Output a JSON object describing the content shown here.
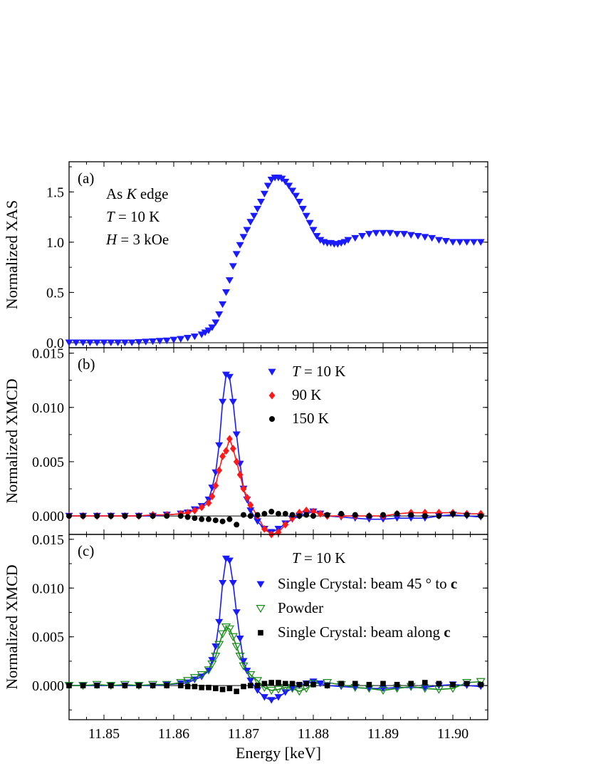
{
  "chart_data": [
    {
      "panel": "(a)",
      "type": "scatter",
      "xlabel": "",
      "ylabel": "Normalized XAS",
      "xlim": [
        11.845,
        11.905
      ],
      "ylim": [
        -0.05,
        1.8
      ],
      "yticks": [
        "0.0",
        "0.5",
        "1.0",
        "1.5"
      ],
      "annotations": {
        "line1_pre": "As ",
        "line1_italic": "K",
        "line1_post": " edge",
        "line2_italic": "T",
        "line2_post": " = 10 K",
        "line3_italic": "H",
        "line3_post": " = 3 kOe"
      },
      "series": [
        {
          "marker": "triangle-down",
          "color": "#1a1aff",
          "x": [
            11.845,
            11.846,
            11.847,
            11.848,
            11.849,
            11.85,
            11.851,
            11.852,
            11.853,
            11.854,
            11.855,
            11.856,
            11.857,
            11.858,
            11.859,
            11.86,
            11.861,
            11.862,
            11.863,
            11.864,
            11.8645,
            11.865,
            11.8655,
            11.866,
            11.8665,
            11.867,
            11.8675,
            11.868,
            11.8685,
            11.869,
            11.8695,
            11.87,
            11.8705,
            11.871,
            11.8715,
            11.872,
            11.8725,
            11.873,
            11.8735,
            11.874,
            11.8745,
            11.875,
            11.8755,
            11.876,
            11.8765,
            11.877,
            11.8775,
            11.878,
            11.8785,
            11.879,
            11.8795,
            11.88,
            11.8805,
            11.881,
            11.8815,
            11.882,
            11.8825,
            11.883,
            11.8835,
            11.884,
            11.8845,
            11.885,
            11.886,
            11.887,
            11.888,
            11.889,
            11.89,
            11.891,
            11.892,
            11.893,
            11.894,
            11.895,
            11.896,
            11.897,
            11.898,
            11.899,
            11.9,
            11.901,
            11.902,
            11.903,
            11.904
          ],
          "y": [
            0.0,
            0.0,
            0.0,
            0.0,
            0.0,
            0.0,
            0.0,
            0.0,
            0.0,
            0.0,
            0.005,
            0.008,
            0.012,
            0.016,
            0.02,
            0.028,
            0.036,
            0.046,
            0.06,
            0.08,
            0.1,
            0.12,
            0.15,
            0.2,
            0.28,
            0.38,
            0.5,
            0.62,
            0.76,
            0.88,
            0.97,
            1.05,
            1.12,
            1.2,
            1.26,
            1.33,
            1.4,
            1.48,
            1.56,
            1.62,
            1.64,
            1.64,
            1.63,
            1.6,
            1.56,
            1.51,
            1.46,
            1.4,
            1.33,
            1.26,
            1.19,
            1.12,
            1.06,
            1.02,
            1.0,
            0.99,
            0.99,
            0.98,
            0.98,
            0.99,
            1.0,
            1.02,
            1.04,
            1.06,
            1.08,
            1.09,
            1.09,
            1.09,
            1.08,
            1.08,
            1.07,
            1.06,
            1.05,
            1.04,
            1.02,
            1.01,
            1.0,
            1.0,
            1.0,
            1.0,
            1.0
          ]
        }
      ]
    },
    {
      "panel": "(b)",
      "type": "scatter",
      "xlabel": "",
      "ylabel": "Normalized XMCD",
      "xlim": [
        11.845,
        11.905
      ],
      "ylim": [
        -0.0017,
        0.0155
      ],
      "yticks": [
        "0.000",
        "0.005",
        "0.010",
        "0.015"
      ],
      "legend_location": "upper-center",
      "series": [
        {
          "name_italic": "T",
          "name_post": " = 10 K",
          "marker": "triangle-down",
          "color": "#1a1aff",
          "fit_line": true,
          "x": [
            11.845,
            11.847,
            11.849,
            11.851,
            11.853,
            11.855,
            11.857,
            11.859,
            11.861,
            11.862,
            11.863,
            11.864,
            11.865,
            11.8655,
            11.866,
            11.8665,
            11.867,
            11.8675,
            11.868,
            11.8685,
            11.869,
            11.8695,
            11.87,
            11.8705,
            11.871,
            11.872,
            11.873,
            11.874,
            11.875,
            11.876,
            11.877,
            11.878,
            11.879,
            11.88,
            11.881,
            11.882,
            11.884,
            11.886,
            11.888,
            11.89,
            11.892,
            11.894,
            11.896,
            11.898,
            11.9,
            11.902,
            11.904
          ],
          "y": [
            0.0,
            0.0,
            0.0,
            0.0,
            0.0,
            0.0,
            0.0,
            0.0001,
            0.0002,
            0.0003,
            0.0006,
            0.0009,
            0.0015,
            0.0026,
            0.004,
            0.0065,
            0.0105,
            0.013,
            0.0128,
            0.0105,
            0.0075,
            0.0048,
            0.0025,
            0.0015,
            0.0005,
            -0.0005,
            -0.0012,
            -0.0015,
            -0.0012,
            -0.0007,
            -0.0003,
            0.0,
            0.0002,
            0.0004,
            0.0002,
            0.0,
            -0.0001,
            -0.0002,
            -0.0003,
            -0.0003,
            -0.0002,
            -0.0002,
            -0.0002,
            0.0,
            0.0001,
            0.0,
            -0.0001
          ]
        },
        {
          "name_pre": "  ",
          "name_post": "90 K",
          "marker": "diamond",
          "color": "#ff1a1a",
          "fit_line": true,
          "x": [
            11.845,
            11.847,
            11.849,
            11.851,
            11.853,
            11.855,
            11.857,
            11.859,
            11.861,
            11.862,
            11.863,
            11.864,
            11.865,
            11.8655,
            11.866,
            11.8665,
            11.867,
            11.8675,
            11.868,
            11.8685,
            11.869,
            11.8695,
            11.87,
            11.8705,
            11.871,
            11.872,
            11.873,
            11.874,
            11.875,
            11.876,
            11.877,
            11.878,
            11.879,
            11.88,
            11.881,
            11.882,
            11.884,
            11.886,
            11.888,
            11.89,
            11.892,
            11.894,
            11.896,
            11.898,
            11.9,
            11.902,
            11.904
          ],
          "y": [
            0.0,
            0.0,
            0.0,
            0.0,
            0.0,
            0.0,
            0.0001,
            0.0001,
            0.0002,
            0.0003,
            0.0005,
            0.0008,
            0.0012,
            0.0018,
            0.0028,
            0.0042,
            0.0055,
            0.006,
            0.0071,
            0.0062,
            0.005,
            0.0038,
            0.0025,
            0.0017,
            0.001,
            0.0,
            -0.0012,
            -0.0017,
            -0.0015,
            -0.0008,
            -0.0002,
            0.0003,
            0.0005,
            0.0004,
            0.0002,
            0.0,
            0.0,
            0.0,
            0.0,
            0.0,
            0.0002,
            0.0003,
            0.0003,
            0.0003,
            0.0003,
            0.0002,
            0.0002
          ]
        },
        {
          "name_post": "150 K",
          "marker": "circle",
          "color": "#000000",
          "fit_line": false,
          "x": [
            11.845,
            11.847,
            11.849,
            11.851,
            11.853,
            11.855,
            11.857,
            11.859,
            11.861,
            11.862,
            11.863,
            11.864,
            11.865,
            11.866,
            11.867,
            11.868,
            11.869,
            11.87,
            11.871,
            11.872,
            11.873,
            11.874,
            11.875,
            11.876,
            11.877,
            11.878,
            11.879,
            11.88,
            11.882,
            11.884,
            11.886,
            11.888,
            11.89,
            11.892,
            11.894,
            11.896,
            11.898,
            11.9,
            11.902,
            11.904
          ],
          "y": [
            0.0,
            0.0,
            0.0,
            0.0,
            0.0,
            0.0,
            0.0,
            0.0,
            0.0,
            -0.0001,
            -0.0002,
            -0.0003,
            -0.0003,
            -0.0004,
            -0.0005,
            -0.0003,
            -0.0008,
            0.0001,
            0.0,
            0.0001,
            0.0002,
            0.0004,
            0.0002,
            0.0002,
            0.0001,
            0.0,
            0.0001,
            0.0,
            0.0001,
            0.0002,
            0.0001,
            0.0,
            0.0001,
            0.0002,
            0.0001,
            0.0,
            0.0,
            0.0002,
            0.0001,
            0.0
          ]
        }
      ]
    },
    {
      "panel": "(c)",
      "type": "scatter",
      "xlabel": "Energy [keV]",
      "ylabel": "Normalized XMCD",
      "xlim": [
        11.845,
        11.905
      ],
      "ylim": [
        -0.0035,
        0.0155
      ],
      "xticks": [
        "11.85",
        "11.86",
        "11.87",
        "11.88",
        "11.89",
        "11.90"
      ],
      "yticks": [
        "0.000",
        "0.005",
        "0.010",
        "0.015"
      ],
      "legend_header_italic": "T",
      "legend_header_post": " = 10 K",
      "series": [
        {
          "name_pre": "Single Crystal: beam 45 ",
          "name_deg": "°",
          "name_post": " to ",
          "name_bold": "c",
          "marker": "triangle-down",
          "color": "#1a1aff",
          "fit_line": true,
          "x": [
            11.845,
            11.847,
            11.849,
            11.851,
            11.853,
            11.855,
            11.857,
            11.859,
            11.861,
            11.862,
            11.863,
            11.864,
            11.865,
            11.8655,
            11.866,
            11.8665,
            11.867,
            11.8675,
            11.868,
            11.8685,
            11.869,
            11.8695,
            11.87,
            11.8705,
            11.871,
            11.872,
            11.873,
            11.874,
            11.875,
            11.876,
            11.877,
            11.878,
            11.879,
            11.88,
            11.881,
            11.882,
            11.884,
            11.886,
            11.888,
            11.89,
            11.892,
            11.894,
            11.896,
            11.898,
            11.9,
            11.902,
            11.904
          ],
          "y": [
            0.0,
            0.0,
            0.0,
            0.0,
            0.0,
            0.0,
            0.0,
            0.0001,
            0.0002,
            0.0003,
            0.0006,
            0.0009,
            0.0015,
            0.0026,
            0.004,
            0.0065,
            0.0105,
            0.013,
            0.0128,
            0.0105,
            0.0075,
            0.0048,
            0.0025,
            0.0015,
            0.0005,
            -0.0005,
            -0.0012,
            -0.0015,
            -0.0012,
            -0.0007,
            -0.0003,
            0.0,
            0.0002,
            0.0004,
            0.0002,
            0.0,
            -0.0001,
            -0.0002,
            -0.0003,
            -0.0003,
            -0.0002,
            -0.0002,
            -0.0002,
            0.0,
            0.0001,
            0.0,
            -0.0001
          ]
        },
        {
          "name_post": "Powder",
          "marker": "triangle-down-open",
          "color": "#1a8a1a",
          "fit_line": true,
          "x": [
            11.845,
            11.847,
            11.849,
            11.851,
            11.853,
            11.855,
            11.857,
            11.859,
            11.861,
            11.862,
            11.863,
            11.864,
            11.865,
            11.8655,
            11.866,
            11.8665,
            11.867,
            11.8675,
            11.868,
            11.8685,
            11.869,
            11.8695,
            11.87,
            11.871,
            11.872,
            11.873,
            11.874,
            11.875,
            11.876,
            11.877,
            11.878,
            11.879,
            11.88,
            11.882,
            11.884,
            11.886,
            11.888,
            11.89,
            11.892,
            11.894,
            11.896,
            11.898,
            11.9,
            11.902,
            11.904
          ],
          "y": [
            0.0,
            0.0,
            0.0001,
            0.0,
            0.0001,
            0.0,
            0.0001,
            0.0001,
            0.0003,
            0.0005,
            0.0008,
            0.0011,
            0.0016,
            0.0022,
            0.003,
            0.0042,
            0.0053,
            0.006,
            0.0058,
            0.005,
            0.004,
            0.003,
            0.002,
            0.0011,
            0.0005,
            -0.0002,
            -0.0005,
            -0.0004,
            -0.0002,
            -0.0003,
            -0.0006,
            -0.0003,
            0.0002,
            0.0003,
            0.0001,
            -0.0002,
            -0.0003,
            -0.0005,
            -0.0003,
            -0.0001,
            -0.0003,
            -0.0004,
            -0.0003,
            0.0003,
            0.0004
          ]
        },
        {
          "name_pre": "Single Crystal: beam along ",
          "name_bold": "c",
          "marker": "square",
          "color": "#000000",
          "fit_line": false,
          "x": [
            11.845,
            11.847,
            11.849,
            11.851,
            11.853,
            11.855,
            11.857,
            11.859,
            11.861,
            11.862,
            11.863,
            11.864,
            11.865,
            11.866,
            11.867,
            11.868,
            11.869,
            11.87,
            11.871,
            11.872,
            11.873,
            11.874,
            11.875,
            11.876,
            11.877,
            11.878,
            11.879,
            11.88,
            11.882,
            11.884,
            11.886,
            11.888,
            11.89,
            11.892,
            11.894,
            11.896,
            11.898,
            11.9,
            11.902,
            11.904
          ],
          "y": [
            0.0,
            0.0,
            0.0,
            0.0,
            0.0,
            0.0,
            0.0,
            0.0,
            0.0,
            -0.0001,
            -0.0001,
            -0.0002,
            -0.0002,
            -0.0003,
            -0.0004,
            -0.0003,
            -0.0006,
            -0.0001,
            0.0,
            0.0,
            0.0002,
            0.0003,
            0.0003,
            0.0002,
            0.0002,
            0.0001,
            0.0002,
            0.0001,
            0.0,
            0.0002,
            0.0002,
            0.0001,
            0.0002,
            0.0001,
            0.0002,
            0.0003,
            0.0002,
            0.0001,
            0.0002,
            0.0001
          ]
        }
      ]
    }
  ]
}
